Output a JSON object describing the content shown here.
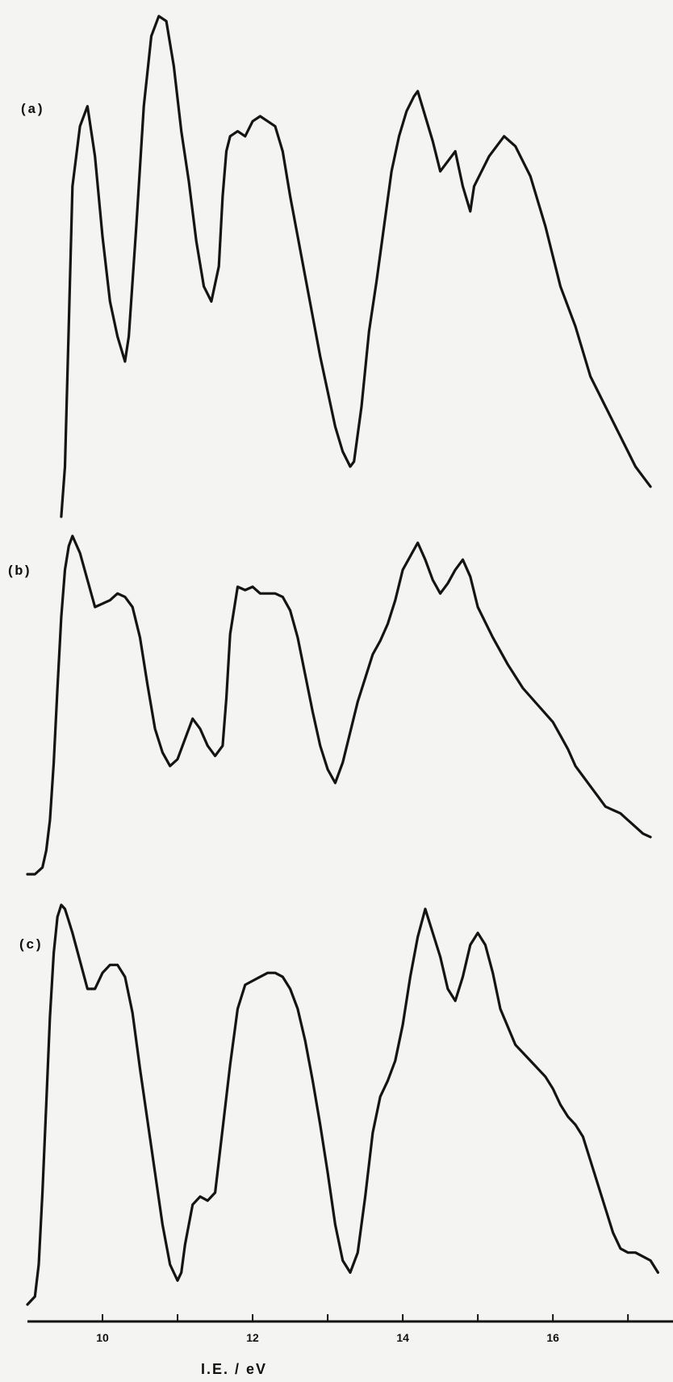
{
  "chart_data": {
    "type": "line",
    "title": "",
    "xlabel": "I.E. / eV",
    "ylabel": "",
    "xlim": [
      9.0,
      17.6
    ],
    "xticks": [
      10,
      11,
      12,
      13,
      14,
      15,
      16,
      17
    ],
    "xtick_labels": [
      "10",
      "",
      "12",
      "",
      "14",
      "",
      "16",
      ""
    ],
    "grid": false,
    "legend": "none",
    "panels": [
      {
        "label": "(a)",
        "series": [
          {
            "x": [
              9.45,
              9.5,
              9.55,
              9.6,
              9.7,
              9.8,
              9.9,
              10.0,
              10.1,
              10.2,
              10.3,
              10.35,
              10.45,
              10.55,
              10.65,
              10.75,
              10.85,
              10.95,
              11.05,
              11.15,
              11.25,
              11.35,
              11.45,
              11.55,
              11.6,
              11.65,
              11.7,
              11.8,
              11.9,
              12.0,
              12.1,
              12.2,
              12.3,
              12.4,
              12.5,
              12.6,
              12.7,
              12.8,
              12.9,
              13.0,
              13.1,
              13.2,
              13.3,
              13.35,
              13.45,
              13.55,
              13.65,
              13.75,
              13.85,
              13.95,
              14.05,
              14.15,
              14.2,
              14.3,
              14.4,
              14.5,
              14.6,
              14.7,
              14.8,
              14.9,
              14.95,
              15.05,
              15.15,
              15.25,
              15.35,
              15.5,
              15.6,
              15.7,
              15.8,
              15.9,
              16.0,
              16.1,
              16.2,
              16.3,
              16.4,
              16.5,
              16.6,
              16.7,
              16.8,
              16.9,
              17.0,
              17.1,
              17.2,
              17.3
            ],
            "y": [
              0.0,
              0.1,
              0.38,
              0.66,
              0.78,
              0.82,
              0.72,
              0.56,
              0.43,
              0.36,
              0.31,
              0.36,
              0.58,
              0.82,
              0.96,
              1.0,
              0.99,
              0.9,
              0.77,
              0.67,
              0.55,
              0.46,
              0.43,
              0.5,
              0.64,
              0.73,
              0.76,
              0.77,
              0.76,
              0.79,
              0.8,
              0.79,
              0.78,
              0.73,
              0.64,
              0.56,
              0.48,
              0.4,
              0.32,
              0.25,
              0.18,
              0.13,
              0.1,
              0.11,
              0.22,
              0.37,
              0.47,
              0.58,
              0.69,
              0.76,
              0.81,
              0.84,
              0.85,
              0.8,
              0.75,
              0.69,
              0.71,
              0.73,
              0.66,
              0.61,
              0.66,
              0.69,
              0.72,
              0.74,
              0.76,
              0.74,
              0.71,
              0.68,
              0.63,
              0.58,
              0.52,
              0.46,
              0.42,
              0.38,
              0.33,
              0.28,
              0.25,
              0.22,
              0.19,
              0.16,
              0.13,
              0.1,
              0.08,
              0.06
            ]
          }
        ]
      },
      {
        "label": "(b)",
        "series": [
          {
            "x": [
              9.0,
              9.1,
              9.2,
              9.25,
              9.3,
              9.35,
              9.4,
              9.45,
              9.5,
              9.55,
              9.6,
              9.7,
              9.8,
              9.9,
              10.0,
              10.1,
              10.2,
              10.3,
              10.4,
              10.5,
              10.6,
              10.7,
              10.8,
              10.9,
              11.0,
              11.1,
              11.2,
              11.3,
              11.4,
              11.5,
              11.6,
              11.65,
              11.7,
              11.8,
              11.9,
              12.0,
              12.1,
              12.2,
              12.3,
              12.4,
              12.5,
              12.6,
              12.7,
              12.8,
              12.9,
              13.0,
              13.1,
              13.2,
              13.3,
              13.4,
              13.5,
              13.6,
              13.7,
              13.8,
              13.9,
              14.0,
              14.1,
              14.2,
              14.3,
              14.4,
              14.5,
              14.6,
              14.7,
              14.8,
              14.9,
              15.0,
              15.2,
              15.4,
              15.6,
              15.8,
              16.0,
              16.1,
              16.2,
              16.3,
              16.4,
              16.5,
              16.6,
              16.7,
              16.8,
              16.9,
              17.0,
              17.1,
              17.2,
              17.3
            ],
            "y": [
              0.0,
              0.0,
              0.02,
              0.07,
              0.16,
              0.33,
              0.55,
              0.76,
              0.9,
              0.97,
              1.0,
              0.95,
              0.87,
              0.79,
              0.8,
              0.81,
              0.83,
              0.82,
              0.79,
              0.7,
              0.56,
              0.43,
              0.36,
              0.32,
              0.34,
              0.4,
              0.46,
              0.43,
              0.38,
              0.35,
              0.38,
              0.52,
              0.71,
              0.85,
              0.84,
              0.85,
              0.83,
              0.83,
              0.83,
              0.82,
              0.78,
              0.7,
              0.59,
              0.48,
              0.38,
              0.31,
              0.27,
              0.33,
              0.42,
              0.51,
              0.58,
              0.65,
              0.69,
              0.74,
              0.81,
              0.9,
              0.94,
              0.98,
              0.93,
              0.87,
              0.83,
              0.86,
              0.9,
              0.93,
              0.88,
              0.79,
              0.7,
              0.62,
              0.55,
              0.5,
              0.45,
              0.41,
              0.37,
              0.32,
              0.29,
              0.26,
              0.23,
              0.2,
              0.19,
              0.18,
              0.16,
              0.14,
              0.12,
              0.11
            ]
          }
        ]
      },
      {
        "label": "(c)",
        "series": [
          {
            "x": [
              9.0,
              9.1,
              9.15,
              9.2,
              9.25,
              9.3,
              9.35,
              9.4,
              9.45,
              9.5,
              9.55,
              9.6,
              9.7,
              9.8,
              9.9,
              10.0,
              10.1,
              10.2,
              10.3,
              10.4,
              10.5,
              10.6,
              10.7,
              10.8,
              10.9,
              11.0,
              11.05,
              11.1,
              11.2,
              11.3,
              11.4,
              11.5,
              11.6,
              11.7,
              11.8,
              11.9,
              12.0,
              12.1,
              12.2,
              12.3,
              12.4,
              12.5,
              12.6,
              12.7,
              12.8,
              12.9,
              13.0,
              13.1,
              13.2,
              13.3,
              13.4,
              13.5,
              13.6,
              13.7,
              13.8,
              13.9,
              14.0,
              14.1,
              14.2,
              14.3,
              14.4,
              14.5,
              14.6,
              14.7,
              14.8,
              14.9,
              15.0,
              15.1,
              15.2,
              15.3,
              15.5,
              15.7,
              15.9,
              16.0,
              16.1,
              16.2,
              16.3,
              16.4,
              16.5,
              16.6,
              16.7,
              16.8,
              16.9,
              17.0,
              17.1,
              17.2,
              17.3,
              17.4
            ],
            "y": [
              0.0,
              0.02,
              0.1,
              0.28,
              0.5,
              0.72,
              0.88,
              0.97,
              1.0,
              0.99,
              0.96,
              0.93,
              0.86,
              0.79,
              0.79,
              0.83,
              0.85,
              0.85,
              0.82,
              0.73,
              0.59,
              0.46,
              0.33,
              0.2,
              0.1,
              0.06,
              0.08,
              0.15,
              0.25,
              0.27,
              0.26,
              0.28,
              0.44,
              0.6,
              0.74,
              0.8,
              0.81,
              0.82,
              0.83,
              0.83,
              0.82,
              0.79,
              0.74,
              0.66,
              0.56,
              0.45,
              0.33,
              0.2,
              0.11,
              0.08,
              0.13,
              0.27,
              0.43,
              0.52,
              0.56,
              0.61,
              0.7,
              0.82,
              0.92,
              0.99,
              0.93,
              0.87,
              0.79,
              0.76,
              0.82,
              0.9,
              0.93,
              0.9,
              0.83,
              0.74,
              0.65,
              0.61,
              0.57,
              0.54,
              0.5,
              0.47,
              0.45,
              0.42,
              0.36,
              0.3,
              0.24,
              0.18,
              0.14,
              0.13,
              0.13,
              0.12,
              0.11,
              0.08
            ]
          }
        ]
      }
    ]
  }
}
